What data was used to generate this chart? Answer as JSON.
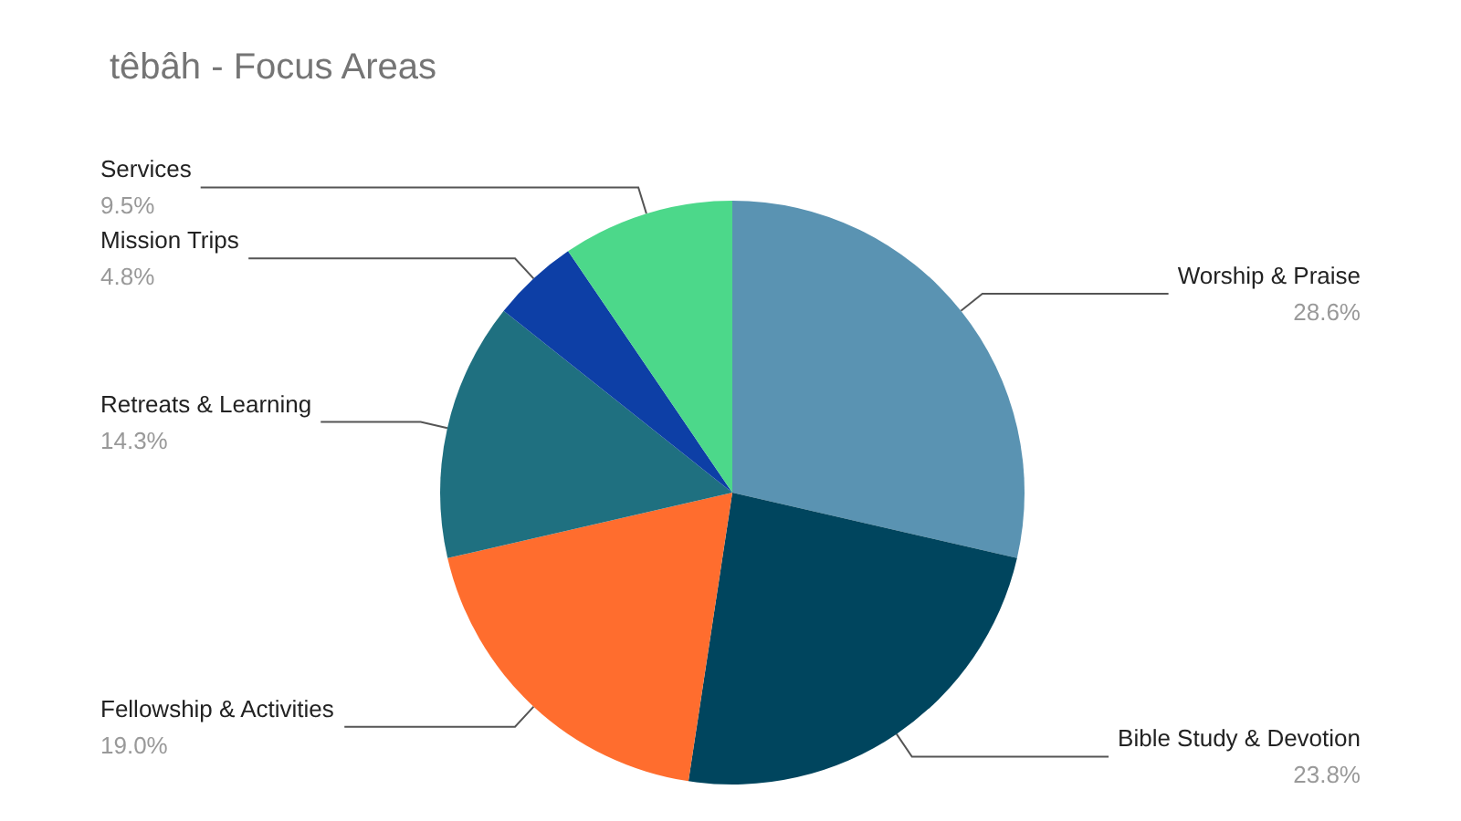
{
  "chart_data": {
    "type": "pie",
    "title": "têbâh - Focus Areas",
    "categories": [
      "Worship & Praise",
      "Bible Study & Devotion",
      "Fellowship & Activities",
      "Retreats & Learning",
      "Mission Trips",
      "Services"
    ],
    "values": [
      28.6,
      23.8,
      19.0,
      14.3,
      4.8,
      9.5
    ],
    "colors": [
      "#5a93b2",
      "#00455e",
      "#ff6d2e",
      "#1f7080",
      "#0d3fa6",
      "#4cd88a"
    ],
    "value_labels": [
      "28.6%",
      "23.8%",
      "19.0%",
      "14.3%",
      "4.8%",
      "9.5%"
    ],
    "legend": false
  }
}
